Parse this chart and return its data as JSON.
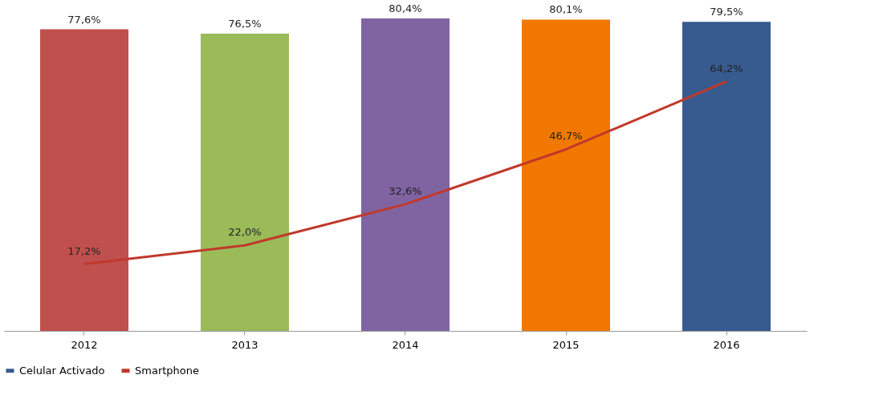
{
  "chart_data": {
    "type": "bar",
    "categories": [
      "2012",
      "2013",
      "2014",
      "2015",
      "2016"
    ],
    "series": [
      {
        "name": "Celular Activado",
        "color": "#375a8f",
        "colors": [
          "#c0504d",
          "#9bbb59",
          "#8064a2",
          "#f07800",
          "#375a8f"
        ],
        "values": [
          77.6,
          76.5,
          80.4,
          80.1,
          79.5
        ],
        "value_labels": [
          "77,6%",
          "76,5%",
          "80,4%",
          "80,1%",
          "79,5%"
        ]
      },
      {
        "name": "Smartphone",
        "type": "line",
        "color": "#c0392b",
        "values": [
          17.2,
          22.0,
          32.6,
          46.7,
          64.2
        ],
        "value_labels": [
          "17,2%",
          "22,0%",
          "32,6%",
          "46,7%",
          "64,2%"
        ]
      }
    ],
    "legend": "bottom"
  }
}
